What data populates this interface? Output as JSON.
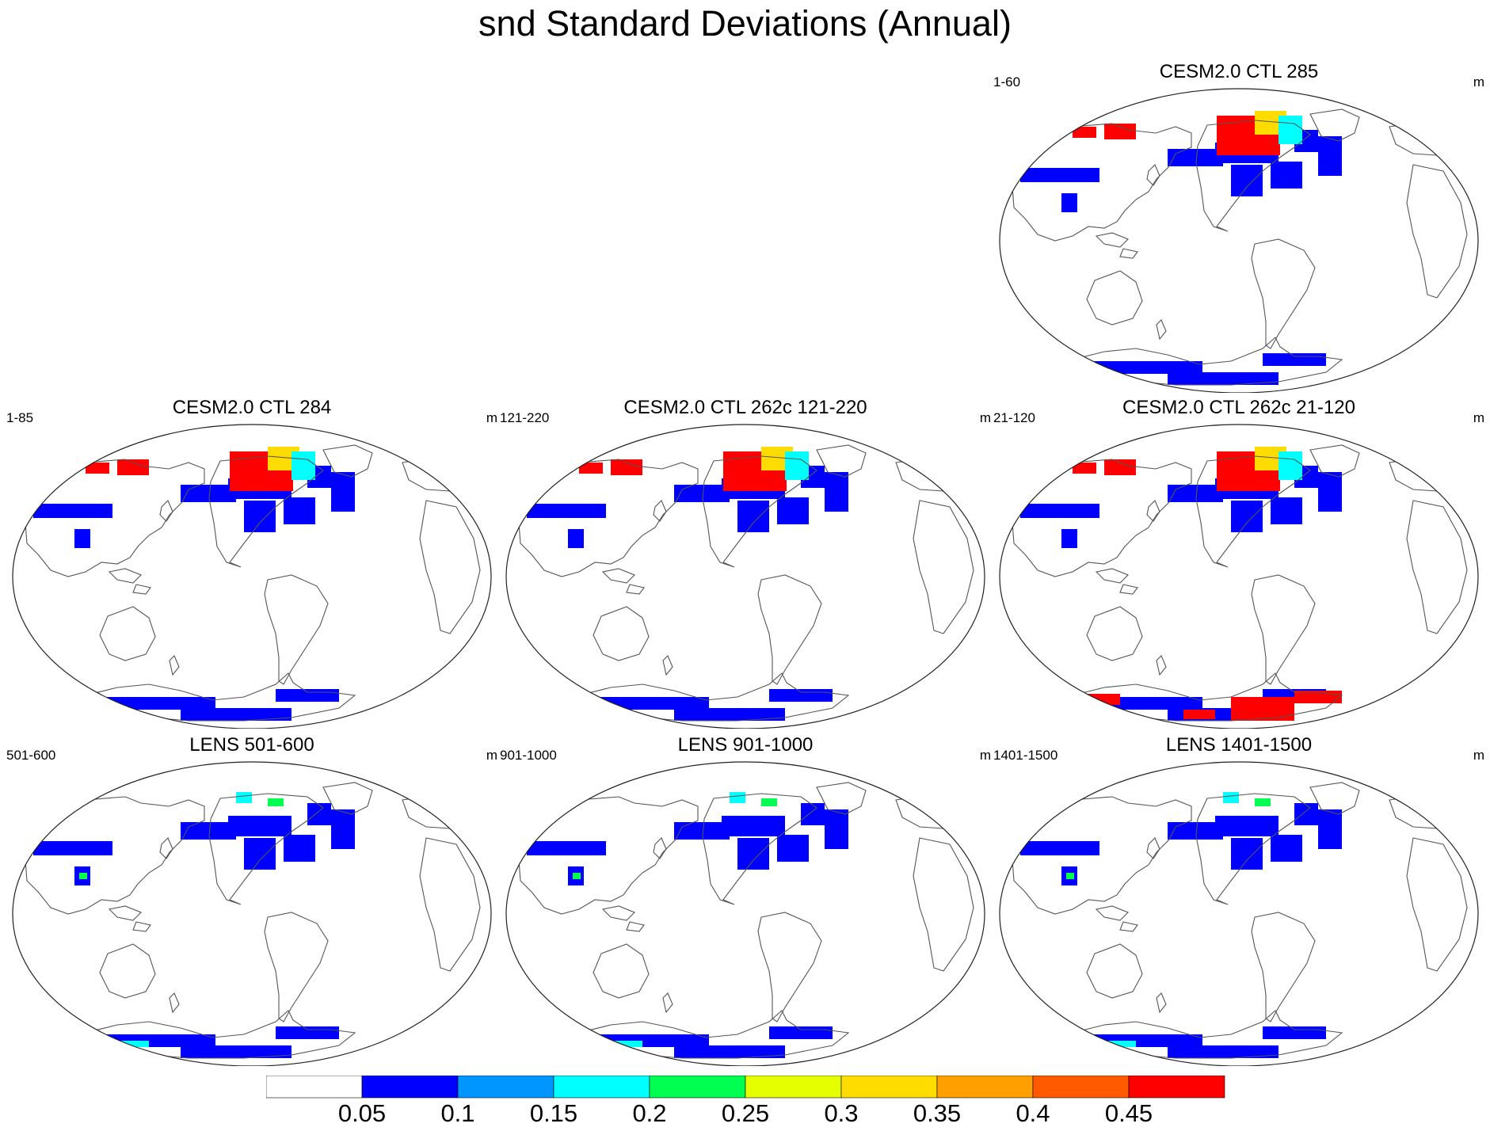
{
  "title": "snd Standard Deviations (Annual)",
  "colors": {
    "coast": "#555555",
    "levels": [
      "#ffffff",
      "#0000ff",
      "#0096ff",
      "#00ffff",
      "#00ff50",
      "#e6ff00",
      "#ffdc00",
      "#ffa000",
      "#ff5a00",
      "#ff0000"
    ]
  },
  "panels": [
    {
      "title": "CESM2.0 CTL 285",
      "left": "1-60",
      "right": "m",
      "intensity": "high"
    },
    {
      "title": "CESM2.0 CTL 284",
      "left": "1-85",
      "right": "m",
      "intensity": "high"
    },
    {
      "title": "CESM2.0 CTL 262c 121-220",
      "left": "121-220",
      "right": "m",
      "intensity": "high"
    },
    {
      "title": "CESM2.0 CTL 262c 21-120",
      "left": "21-120",
      "right": "m",
      "intensity": "very-high"
    },
    {
      "title": "LENS 501-600",
      "left": "501-600",
      "right": "m",
      "intensity": "low"
    },
    {
      "title": "LENS 901-1000",
      "left": "901-1000",
      "right": "m",
      "intensity": "low"
    },
    {
      "title": "LENS 1401-1500",
      "left": "1401-1500",
      "right": "m",
      "intensity": "low"
    }
  ],
  "chart_data": {
    "type": "heatmap",
    "title": "snd Standard Deviations (Annual)",
    "variable": "snd",
    "units": "m",
    "season": "Annual",
    "panel_count": 7,
    "colorbar": {
      "levels": [
        0.05,
        0.1,
        0.15,
        0.2,
        0.25,
        0.3,
        0.35,
        0.4,
        0.45
      ],
      "labels": [
        "0.05",
        "0.1",
        "0.15",
        "0.2",
        "0.25",
        "0.3",
        "0.35",
        "0.4",
        "0.45"
      ],
      "colors": [
        "#ffffff",
        "#0000ff",
        "#0096ff",
        "#00ffff",
        "#00ff50",
        "#e6ff00",
        "#ffdc00",
        "#ffa000",
        "#ff5a00",
        "#ff0000"
      ]
    }
  }
}
